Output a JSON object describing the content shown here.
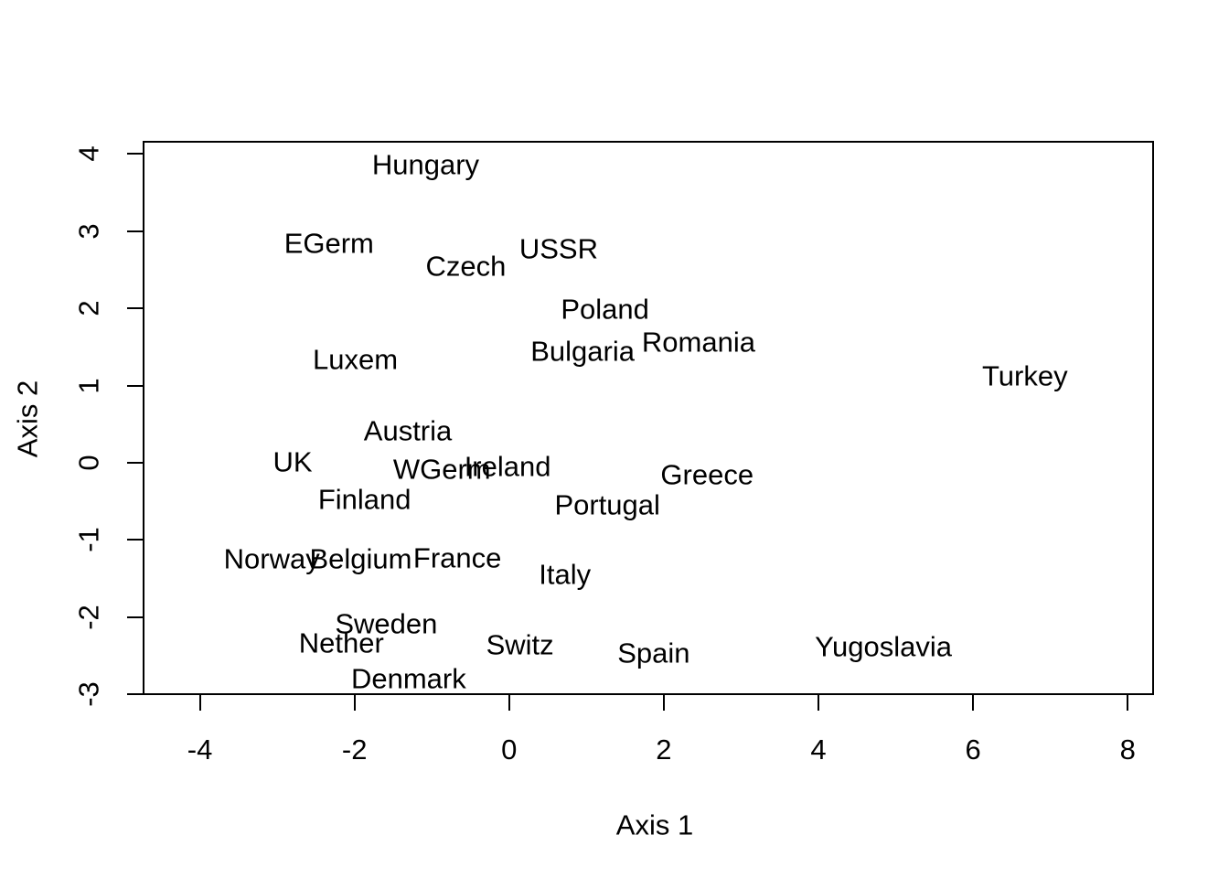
{
  "colors": {
    "background": "#ffffff",
    "foreground": "#000000"
  },
  "chart_data": {
    "type": "scatter",
    "marker_style": "text-labels",
    "xlabel": "Axis 1",
    "ylabel": "Axis 2",
    "xlim": [
      -4.74,
      8.34
    ],
    "ylim": [
      -3.01,
      4.17
    ],
    "x_ticks": [
      -4,
      -2,
      0,
      2,
      4,
      6,
      8
    ],
    "y_ticks": [
      -3,
      -2,
      -1,
      0,
      1,
      2,
      3,
      4
    ],
    "x_tick_labels": [
      "-4",
      "-2",
      "0",
      "2",
      "4",
      "6",
      "8"
    ],
    "y_tick_labels": [
      "-3",
      "-2",
      "-1",
      "0",
      "1",
      "2",
      "3",
      "4"
    ],
    "grid": false,
    "legend": null,
    "points": [
      {
        "label": "Hungary",
        "x": -1.08,
        "y": 3.86
      },
      {
        "label": "EGerm",
        "x": -2.33,
        "y": 2.84
      },
      {
        "label": "Czech",
        "x": -0.56,
        "y": 2.55
      },
      {
        "label": "USSR",
        "x": 0.64,
        "y": 2.77
      },
      {
        "label": "Poland",
        "x": 1.24,
        "y": 1.99
      },
      {
        "label": "Bulgaria",
        "x": 0.95,
        "y": 1.44
      },
      {
        "label": "Romania",
        "x": 2.45,
        "y": 1.56
      },
      {
        "label": "Luxem",
        "x": -1.99,
        "y": 1.34
      },
      {
        "label": "Turkey",
        "x": 6.67,
        "y": 1.12
      },
      {
        "label": "Austria",
        "x": -1.31,
        "y": 0.41
      },
      {
        "label": "UK",
        "x": -2.8,
        "y": 0.01
      },
      {
        "label": "WGerm",
        "x": -0.87,
        "y": -0.08
      },
      {
        "label": "Ireland",
        "x": -0.02,
        "y": -0.05
      },
      {
        "label": "Greece",
        "x": 2.56,
        "y": -0.16
      },
      {
        "label": "Finland",
        "x": -1.87,
        "y": -0.48
      },
      {
        "label": "Portugal",
        "x": 1.27,
        "y": -0.54
      },
      {
        "label": "Norway",
        "x": -3.07,
        "y": -1.25
      },
      {
        "label": "Belgium",
        "x": -1.92,
        "y": -1.25
      },
      {
        "label": "France",
        "x": -0.67,
        "y": -1.23
      },
      {
        "label": "Italy",
        "x": 0.72,
        "y": -1.45
      },
      {
        "label": "Sweden",
        "x": -1.59,
        "y": -2.08
      },
      {
        "label": "Nether",
        "x": -2.17,
        "y": -2.34
      },
      {
        "label": "Switz",
        "x": 0.14,
        "y": -2.36
      },
      {
        "label": "Spain",
        "x": 1.87,
        "y": -2.46
      },
      {
        "label": "Yugoslavia",
        "x": 4.84,
        "y": -2.38
      },
      {
        "label": "Denmark",
        "x": -1.3,
        "y": -2.8
      }
    ]
  }
}
